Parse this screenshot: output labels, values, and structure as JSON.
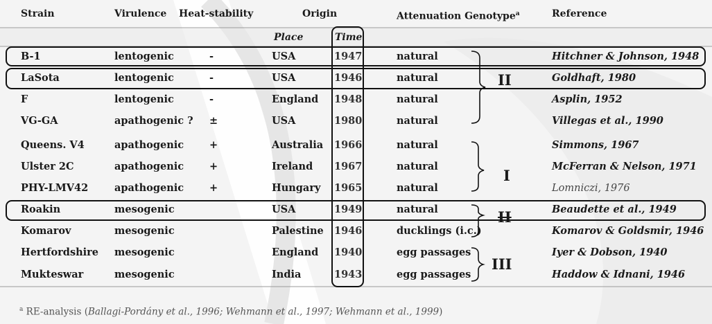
{
  "headers": {
    "strain": "Strain",
    "virulence": "Virulence",
    "heat_stability": "Heat-stability",
    "origin": "Origin",
    "attenuation": "Attenuation",
    "genotype": "Genotype",
    "genotype_sup": "a",
    "reference": "Reference",
    "place": "Place",
    "time": "Time"
  },
  "rows": [
    {
      "strain": "B-1",
      "virulence": "lentogenic",
      "heat": "-",
      "place": "USA",
      "time": "1947",
      "attenuation": "natural",
      "reference": "Hitchner & Johnson, 1948"
    },
    {
      "strain": "LaSota",
      "virulence": "lentogenic",
      "heat": "-",
      "place": "USA",
      "time": "1946",
      "attenuation": "natural",
      "reference": "Goldhaft, 1980"
    },
    {
      "strain": "F",
      "virulence": "lentogenic",
      "heat": "-",
      "place": "England",
      "time": "1948",
      "attenuation": "natural",
      "reference": "Asplin, 1952"
    },
    {
      "strain": "VG-GA",
      "virulence": "apathogenic ?",
      "heat": "±",
      "place": "USA",
      "time": "1980",
      "attenuation": "natural",
      "reference": "Villegas et al., 1990"
    },
    {
      "strain": "Queens. V4",
      "virulence": "apathogenic",
      "heat": "+",
      "place": "Australia",
      "time": "1966",
      "attenuation": "natural",
      "reference": "Simmons, 1967"
    },
    {
      "strain": "Ulster 2C",
      "virulence": "apathogenic",
      "heat": "+",
      "place": "Ireland",
      "time": "1967",
      "attenuation": "natural",
      "reference": "McFerran & Nelson, 1971"
    },
    {
      "strain": "PHY-LMV42",
      "virulence": "apathogenic",
      "heat": "+",
      "place": "Hungary",
      "time": "1965",
      "attenuation": "natural",
      "reference": "Lomniczi, 1976"
    },
    {
      "strain": "Roakin",
      "virulence": "mesogenic",
      "heat": "",
      "place": "USA",
      "time": "1949",
      "attenuation": "natural",
      "reference": "Beaudette et al., 1949"
    },
    {
      "strain": "Komarov",
      "virulence": "mesogenic",
      "heat": "",
      "place": "Palestine",
      "time": "1946",
      "attenuation": "ducklings (i.c.)",
      "reference": "Komarov & Goldsmir, 1946"
    },
    {
      "strain": "Hertfordshire",
      "virulence": "mesogenic",
      "heat": "",
      "place": "England",
      "time": "1940",
      "attenuation": "egg passages",
      "reference": "Iyer & Dobson, 1940"
    },
    {
      "strain": "Mukteswar",
      "virulence": "mesogenic",
      "heat": "",
      "place": "India",
      "time": "1943",
      "attenuation": "egg passages",
      "reference": "Haddow & Idnani, 1946"
    }
  ],
  "genotypes": [
    {
      "label": "II"
    },
    {
      "label": "I"
    },
    {
      "label": "II"
    },
    {
      "label": "III"
    }
  ],
  "footnote": {
    "mark": "a",
    "prefix": " RE-analysis (",
    "refs": "Ballagi-Pordány et al., 1996; Wehmann et al., 1997; Wehmann et al., 1999",
    "suffix": ")"
  }
}
